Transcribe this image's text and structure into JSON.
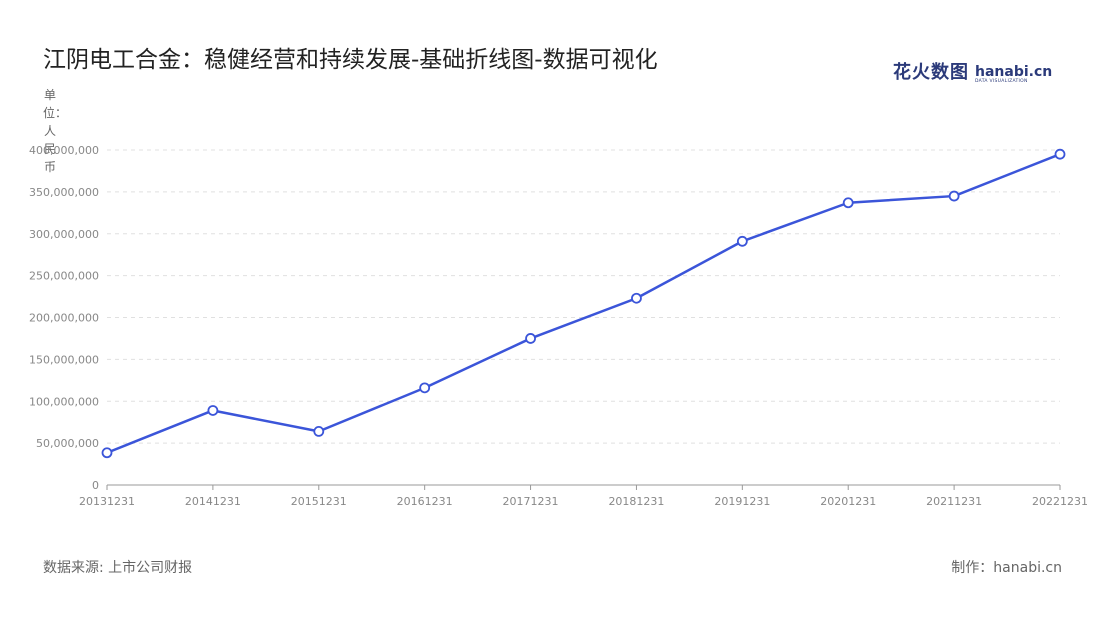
{
  "header": {
    "title": "江阴电工合金：稳健经营和持续发展-基础折线图-数据可视化"
  },
  "logo": {
    "cn": "花火数图",
    "en": "hanabi.cn",
    "sub": "DATA VISUALIZATION"
  },
  "footer": {
    "source": "数据来源: 上市公司财报",
    "maker": "制作：hanabi.cn"
  },
  "colors": {
    "line": "#3b55d9",
    "grid": "#e0e0e0",
    "axis": "#999999",
    "tick_text": "#888888"
  },
  "chart_data": {
    "type": "line",
    "title": "江阴电工合金：稳健经营和持续发展-基础折线图-数据可视化",
    "ylabel": "单位：人民币",
    "xlabel": "",
    "categories": [
      "20131231",
      "20141231",
      "20151231",
      "20161231",
      "20171231",
      "20181231",
      "20191231",
      "20201231",
      "20211231",
      "20221231"
    ],
    "values": [
      38500000,
      89000000,
      64000000,
      116000000,
      175000000,
      223000000,
      291000000,
      337000000,
      345000000,
      395000000
    ],
    "ylim": [
      0,
      400000000
    ],
    "yticks": [
      0,
      50000000,
      100000000,
      150000000,
      200000000,
      250000000,
      300000000,
      350000000,
      400000000
    ],
    "ytick_labels": [
      "0",
      "50,000,000",
      "100,000,000",
      "150,000,000",
      "200,000,000",
      "250,000,000",
      "300,000,000",
      "350,000,000",
      "400,000,000"
    ],
    "grid": true,
    "markers": "hollow-circle"
  }
}
